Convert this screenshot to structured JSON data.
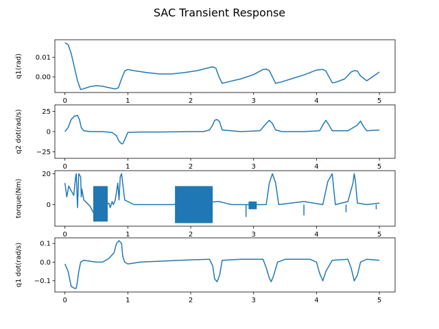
{
  "figure": {
    "suptitle": "SAC Transient Response"
  },
  "chart_data": [
    {
      "type": "line",
      "ylabel": "q1(rad)",
      "xlim": [
        -0.16,
        5.25
      ],
      "ylim": [
        -0.008,
        0.019
      ],
      "xticks": [
        0,
        1,
        2,
        3,
        4,
        5
      ],
      "xtick_labels": [
        "0",
        "1",
        "2",
        "3",
        "4",
        "5"
      ],
      "yticks": [
        0.0,
        0.01
      ],
      "ytick_labels": [
        "0.00",
        "0.01"
      ],
      "grid": false,
      "color": "#1f77b4",
      "x": [
        0,
        0.05,
        0.1,
        0.15,
        0.2,
        0.25,
        0.3,
        0.4,
        0.5,
        0.6,
        0.7,
        0.8,
        0.85,
        0.9,
        0.95,
        1.0,
        1.1,
        1.3,
        1.5,
        1.7,
        1.9,
        2.1,
        2.3,
        2.35,
        2.4,
        2.45,
        2.5,
        2.6,
        2.8,
        3.0,
        3.15,
        3.2,
        3.25,
        3.3,
        3.35,
        3.45,
        3.6,
        3.8,
        4.0,
        4.1,
        4.15,
        4.2,
        4.25,
        4.3,
        4.45,
        4.55,
        4.6,
        4.65,
        4.7,
        4.8,
        5.0
      ],
      "y": [
        0.0175,
        0.0165,
        0.012,
        0.005,
        -0.002,
        -0.0065,
        -0.006,
        -0.005,
        -0.0045,
        -0.0048,
        -0.0055,
        -0.0062,
        -0.0055,
        -0.001,
        0.003,
        0.0038,
        0.0032,
        0.0022,
        0.0015,
        0.0015,
        0.0022,
        0.0032,
        0.0048,
        0.0052,
        0.0045,
        0.0,
        -0.0033,
        -0.0025,
        -0.001,
        0.0012,
        0.0038,
        0.004,
        0.0032,
        0.0,
        -0.0033,
        -0.0025,
        -0.001,
        0.001,
        0.0035,
        0.0038,
        0.003,
        0.0,
        -0.003,
        -0.0028,
        -0.001,
        0.0025,
        0.0032,
        0.003,
        0.0005,
        -0.002,
        0.0025
      ]
    },
    {
      "type": "line",
      "ylabel": "q2 dot(rad/s)",
      "xlim": [
        -0.16,
        5.25
      ],
      "ylim": [
        -33,
        33
      ],
      "xticks": [
        0,
        1,
        2,
        3,
        4,
        5
      ],
      "xtick_labels": [
        "0",
        "1",
        "2",
        "3",
        "4",
        "5"
      ],
      "yticks": [
        -25,
        0,
        25
      ],
      "ytick_labels": [
        "−25",
        "0",
        "25"
      ],
      "grid": false,
      "color": "#1f77b4",
      "x": [
        0,
        0.05,
        0.1,
        0.15,
        0.2,
        0.23,
        0.26,
        0.3,
        0.4,
        0.6,
        0.75,
        0.82,
        0.86,
        0.9,
        0.92,
        0.95,
        1.0,
        1.2,
        1.5,
        2.0,
        2.2,
        2.3,
        2.35,
        2.38,
        2.42,
        2.46,
        2.5,
        2.8,
        3.1,
        3.2,
        3.25,
        3.3,
        3.35,
        3.45,
        3.8,
        4.05,
        4.1,
        4.15,
        4.2,
        4.25,
        4.5,
        4.65,
        4.7,
        4.75,
        4.8,
        5.0
      ],
      "y": [
        0,
        5,
        15,
        19,
        20,
        15,
        5,
        1,
        0,
        0,
        -1,
        -5,
        -12,
        -15,
        -15,
        -10,
        -1,
        -0.5,
        -0.5,
        0,
        0,
        2,
        8,
        14,
        15,
        12,
        2,
        0,
        1,
        10,
        14,
        10,
        2,
        0,
        0,
        1,
        8,
        14,
        8,
        1,
        1,
        8,
        13,
        6,
        1,
        2
      ]
    },
    {
      "type": "line",
      "ylabel": "torque(Nm)",
      "xlim": [
        -0.16,
        5.25
      ],
      "ylim": [
        -14,
        22
      ],
      "xticks": [
        0,
        1,
        2,
        3,
        4,
        5
      ],
      "xtick_labels": [
        "0",
        "1",
        "2",
        "3",
        "4",
        "5"
      ],
      "yticks": [
        0,
        20
      ],
      "ytick_labels": [
        "0",
        "20"
      ],
      "grid": false,
      "color": "#1f77b4",
      "x": [
        0,
        0.03,
        0.06,
        0.1,
        0.14,
        0.17,
        0.18,
        0.2,
        0.22,
        0.25,
        0.26,
        0.27,
        0.3,
        0.35,
        0.4,
        0.45,
        0.7,
        0.72,
        0.75,
        0.77,
        0.8,
        0.82,
        0.84,
        0.86,
        0.88,
        0.9,
        0.95,
        1.1,
        1.3,
        1.5,
        1.7,
        2.45,
        2.55,
        2.65,
        2.75,
        2.9,
        3.2,
        3.25,
        3.3,
        3.35,
        3.4,
        3.6,
        3.8,
        3.95,
        4.1,
        4.18,
        4.25,
        4.3,
        4.5,
        4.58,
        4.6,
        4.62,
        4.65,
        4.8,
        5.0
      ],
      "y": [
        14,
        5,
        12,
        9,
        6,
        18,
        20,
        -2,
        20,
        18,
        5,
        10,
        3,
        1,
        -1,
        -5,
        1,
        -2,
        2,
        0,
        3,
        8,
        14,
        3,
        18,
        20,
        3,
        0,
        0,
        0,
        0,
        2,
        1,
        0,
        0,
        0,
        0,
        14,
        20,
        14,
        0,
        1,
        2,
        1,
        0,
        15,
        20,
        0,
        2,
        14,
        20,
        15,
        1,
        0,
        1
      ],
      "bands": [
        {
          "x": [
            0.45,
            0.68
          ],
          "ymin": -11,
          "ymax": 12
        },
        {
          "x": [
            1.75,
            2.35
          ],
          "ymin": -12,
          "ymax": 12
        },
        {
          "x": [
            2.92,
            3.05
          ],
          "ymin": -3,
          "ymax": 2
        }
      ],
      "spikes": [
        {
          "x": 2.88,
          "y": -8
        },
        {
          "x": 3.8,
          "y": -7
        },
        {
          "x": 4.47,
          "y": -5
        },
        {
          "x": 4.95,
          "y": -3
        }
      ]
    },
    {
      "type": "line",
      "ylabel": "q1 dot(rad/s)",
      "xlim": [
        -0.16,
        5.25
      ],
      "ylim": [
        -0.16,
        0.13
      ],
      "xticks": [
        0,
        1,
        2,
        3,
        4,
        5
      ],
      "xtick_labels": [
        "0",
        "1",
        "2",
        "3",
        "4",
        "5"
      ],
      "yticks": [
        -0.1,
        0.0,
        0.1
      ],
      "ytick_labels": [
        "−0.1",
        "0.0",
        "0.1"
      ],
      "grid": false,
      "color": "#1f77b4",
      "x": [
        0,
        0.05,
        0.1,
        0.15,
        0.18,
        0.2,
        0.22,
        0.25,
        0.3,
        0.4,
        0.5,
        0.6,
        0.7,
        0.78,
        0.82,
        0.86,
        0.9,
        0.92,
        0.95,
        1.0,
        1.2,
        1.5,
        2.0,
        2.3,
        2.35,
        2.38,
        2.42,
        2.46,
        2.5,
        2.8,
        3.15,
        3.2,
        3.25,
        3.28,
        3.32,
        3.38,
        3.5,
        3.9,
        4.0,
        4.05,
        4.1,
        4.15,
        4.25,
        4.5,
        4.55,
        4.6,
        4.65,
        4.7,
        4.8,
        5.0
      ],
      "y": [
        -0.01,
        -0.05,
        -0.13,
        -0.14,
        -0.14,
        -0.1,
        -0.05,
        0.0,
        0.01,
        0.005,
        0.0,
        0.0,
        0.02,
        0.05,
        0.1,
        0.115,
        0.1,
        0.03,
        0.0,
        -0.01,
        0.0,
        0.005,
        0.012,
        0.015,
        -0.02,
        -0.09,
        -0.105,
        -0.07,
        0.01,
        0.015,
        0.015,
        -0.03,
        -0.085,
        -0.105,
        -0.07,
        0.0,
        0.015,
        0.015,
        0.0,
        -0.06,
        -0.1,
        -0.05,
        0.01,
        0.015,
        -0.03,
        -0.1,
        -0.07,
        0.0,
        0.015,
        0.01
      ]
    }
  ]
}
